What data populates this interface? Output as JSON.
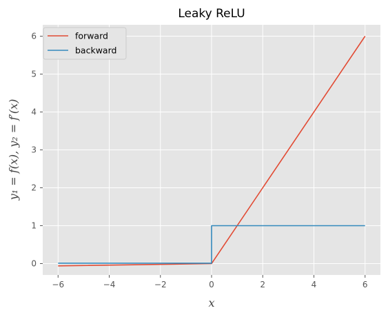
{
  "chart_data": {
    "type": "line",
    "title": "Leaky ReLU",
    "xlabel": "x",
    "ylabel": "y₁ = f(x), y₂ = f′(x)",
    "xlim": [
      -6.6,
      6.6
    ],
    "ylim": [
      -0.3,
      6.3
    ],
    "xticks": [
      -6,
      -4,
      -2,
      0,
      2,
      4,
      6
    ],
    "xtick_labels": [
      "−6",
      "−4",
      "−2",
      "0",
      "2",
      "4",
      "6"
    ],
    "yticks": [
      0,
      1,
      2,
      3,
      4,
      5,
      6
    ],
    "ytick_labels": [
      "0",
      "1",
      "2",
      "3",
      "4",
      "5",
      "6"
    ],
    "grid": true,
    "legend_position": "top-left",
    "series": [
      {
        "name": "forward",
        "color": "#E24A33",
        "x": [
          -6,
          0,
          6
        ],
        "y": [
          -0.06,
          0,
          6
        ]
      },
      {
        "name": "backward",
        "color": "#348ABD",
        "x": [
          -6,
          0,
          0,
          6
        ],
        "y": [
          0.01,
          0.01,
          1,
          1
        ]
      }
    ]
  }
}
